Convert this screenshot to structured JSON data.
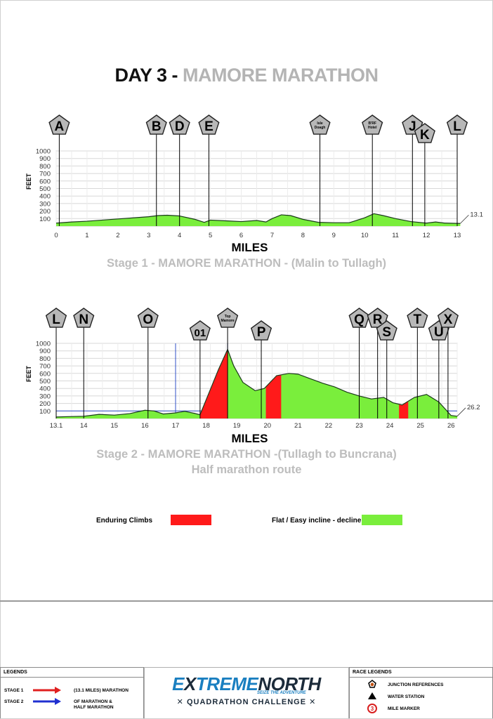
{
  "title": {
    "prefix": "DAY 3 - ",
    "main": "MAMORE MARATHON"
  },
  "colors": {
    "climb": "#ff1a1a",
    "flat": "#7aee3c",
    "marker": "#b8b8b8",
    "grid": "#d8d8d8",
    "title_grey": "#b4b4b4",
    "stage1_arrow": "#e02020",
    "stage2_arrow": "#2030d0"
  },
  "chart_data": [
    {
      "type": "area",
      "caption": "Stage 1 - MAMORE MARATHON - (Malin to Tullagh)",
      "xlabel": "MILES",
      "ylabel": "FEET",
      "xlim": [
        0,
        13
      ],
      "ylim": [
        0,
        1000
      ],
      "x_ticks": [
        "0",
        "1",
        "2",
        "3",
        "4",
        "5",
        "6",
        "7",
        "8",
        "9",
        "10",
        "11",
        "12",
        "13"
      ],
      "y_ticks": [
        "1000",
        "900",
        "800",
        "700",
        "600",
        "500",
        "400",
        "300",
        "200",
        "100"
      ],
      "end_label": "13.1",
      "grid": true,
      "legend": "none",
      "x": [
        0,
        0.5,
        1,
        1.5,
        2,
        2.5,
        3,
        3.3,
        3.6,
        4,
        4.5,
        4.8,
        5,
        5.5,
        6,
        6.5,
        6.8,
        7,
        7.3,
        7.6,
        8,
        8.5,
        9,
        9.5,
        10,
        10.3,
        10.6,
        11,
        11.5,
        12,
        12.3,
        12.6,
        13.1
      ],
      "y": [
        40,
        55,
        65,
        80,
        95,
        110,
        125,
        140,
        145,
        135,
        90,
        50,
        80,
        70,
        60,
        75,
        55,
        100,
        150,
        140,
        90,
        50,
        45,
        45,
        110,
        165,
        140,
        100,
        60,
        40,
        55,
        40,
        35
      ],
      "markers": [
        {
          "label": "A",
          "x": 0.1,
          "size": "big"
        },
        {
          "label": "B",
          "x": 3.25,
          "size": "big"
        },
        {
          "label": "D",
          "x": 4.0,
          "size": "big"
        },
        {
          "label": "E",
          "x": 4.95,
          "size": "big"
        },
        {
          "label": "Isle Doagh",
          "x": 8.55,
          "size": "small"
        },
        {
          "label": "B'RF Hotel",
          "x": 10.25,
          "size": "small"
        },
        {
          "label": "J",
          "x": 11.55,
          "size": "big"
        },
        {
          "label": "K",
          "x": 11.95,
          "size": "big",
          "low": true
        },
        {
          "label": "L",
          "x": 13.0,
          "size": "big"
        }
      ],
      "climbs": []
    },
    {
      "type": "area",
      "caption": "Stage 2 - MAMORE MARATHON -(Tullagh to Buncrana)",
      "caption2": "Half marathon route",
      "xlabel": "MILES",
      "ylabel": "FEET",
      "xlim": [
        13.1,
        26.2
      ],
      "ylim": [
        0,
        1000
      ],
      "x_ticks": [
        "13.1",
        "14",
        "15",
        "16",
        "17",
        "18",
        "19",
        "20",
        "21",
        "22",
        "23",
        "24",
        "25",
        "26"
      ],
      "y_ticks": [
        "1000",
        "900",
        "800",
        "700",
        "600",
        "500",
        "400",
        "300",
        "200",
        "100"
      ],
      "end_label": "26.2",
      "grid": true,
      "legend": "bottom",
      "x": [
        13.1,
        13.5,
        14,
        14.5,
        15,
        15.5,
        16,
        16.3,
        16.6,
        17,
        17.3,
        17.6,
        17.8,
        18.1,
        18.4,
        18.7,
        18.9,
        19.2,
        19.6,
        19.9,
        20.3,
        20.7,
        21,
        21.4,
        21.8,
        22.2,
        22.6,
        23,
        23.4,
        23.8,
        24.1,
        24.4,
        24.8,
        25.2,
        25.6,
        26,
        26.2
      ],
      "y": [
        20,
        25,
        30,
        55,
        45,
        65,
        110,
        100,
        60,
        75,
        95,
        70,
        50,
        350,
        650,
        920,
        700,
        480,
        370,
        400,
        570,
        600,
        590,
        530,
        470,
        420,
        350,
        300,
        260,
        280,
        210,
        180,
        280,
        320,
        220,
        40,
        30
      ],
      "markers": [
        {
          "label": "L",
          "x": 13.1,
          "size": "big"
        },
        {
          "label": "N",
          "x": 14.0,
          "size": "big"
        },
        {
          "label": "O",
          "x": 16.1,
          "size": "big"
        },
        {
          "label": "01",
          "x": 17.8,
          "size": "big",
          "low": true
        },
        {
          "label": "Top Mamore",
          "x": 18.7,
          "size": "small"
        },
        {
          "label": "P",
          "x": 19.8,
          "size": "big",
          "low": true
        },
        {
          "label": "Q",
          "x": 23.0,
          "size": "big"
        },
        {
          "label": "R",
          "x": 23.6,
          "size": "big"
        },
        {
          "label": "S",
          "x": 23.9,
          "size": "big",
          "low": true
        },
        {
          "label": "T",
          "x": 24.9,
          "size": "big"
        },
        {
          "label": "U",
          "x": 25.6,
          "size": "big",
          "low": true
        },
        {
          "label": "X",
          "x": 25.9,
          "size": "big"
        }
      ],
      "climbs": [
        [
          17.8,
          18.7
        ],
        [
          19.95,
          20.45
        ],
        [
          24.3,
          24.6
        ]
      ],
      "reference_line": 100,
      "vertical_lines": [
        17.0,
        18.7
      ]
    }
  ],
  "legend": {
    "climbs_label": "Enduring Climbs",
    "flat_label": "Flat / Easy incline - decline"
  },
  "footer": {
    "legends_heading": "LEGENDS",
    "stage1_label": "STAGE 1",
    "stage1_desc": "(13.1 MILES) MARATHON",
    "stage2_label": "STAGE 2",
    "stage2_desc1": "OF MARATHON &",
    "stage2_desc2": "HALF MARATHON",
    "logo_part1": "E",
    "logo_x": "X",
    "logo_part2": "TREME",
    "logo_part3": "NORTH",
    "logo_tagline": "SEIZE THE ADVENTURE",
    "logo_sub": "QUADRATHON CHALLENGE",
    "race_heading": "RACE LEGENDS",
    "junction_label": "JUNCTION REFERENCES",
    "water_label": "WATER STATION",
    "mile_label": "MILE MARKER",
    "mile_marker_number": "3"
  }
}
